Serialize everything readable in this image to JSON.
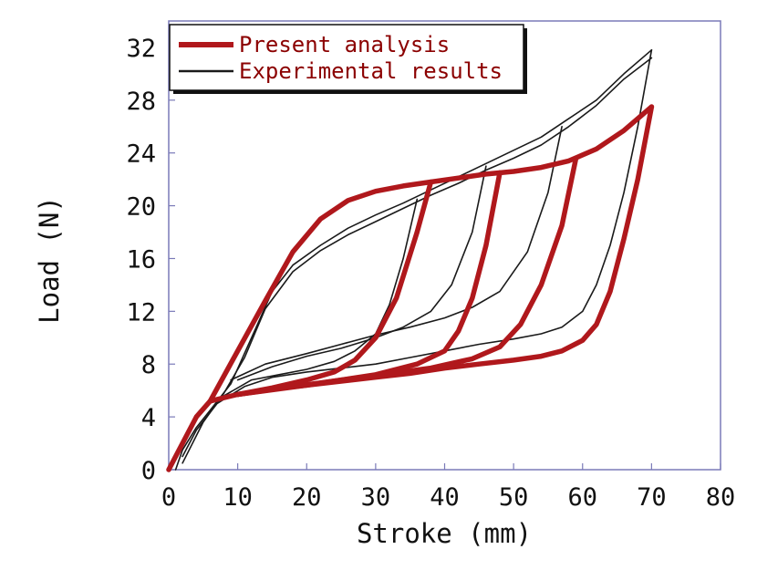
{
  "chart_data": {
    "type": "line",
    "title": "",
    "xlabel": "Stroke (mm)",
    "ylabel": "Load (N)",
    "xlim": [
      0,
      80
    ],
    "ylim": [
      0,
      34
    ],
    "xticks": [
      "0",
      "10",
      "20",
      "30",
      "40",
      "50",
      "60",
      "70",
      "80"
    ],
    "yticks": [
      "0",
      "4",
      "8",
      "12",
      "16",
      "20",
      "24",
      "28",
      "32"
    ],
    "grid": false,
    "legend_position": "top-left",
    "colors": {
      "analysis": "#b0181c",
      "experiment": "#1a1a1a"
    },
    "series": [
      {
        "name": "Present analysis",
        "style": "thick red",
        "segments": [
          [
            [
              0,
              0
            ],
            [
              2,
              2
            ],
            [
              4,
              4
            ],
            [
              6,
              5.2
            ],
            [
              10,
              9
            ],
            [
              14,
              12.8
            ],
            [
              18,
              16.5
            ],
            [
              22,
              19
            ],
            [
              26,
              20.4
            ],
            [
              30,
              21.1
            ],
            [
              34,
              21.5
            ],
            [
              38,
              21.8
            ],
            [
              42,
              22.1
            ],
            [
              46,
              22.4
            ],
            [
              50,
              22.6
            ],
            [
              54,
              22.9
            ],
            [
              58,
              23.4
            ],
            [
              62,
              24.3
            ],
            [
              66,
              25.7
            ],
            [
              70,
              27.5
            ]
          ],
          [
            [
              70,
              27.5
            ],
            [
              68,
              22
            ],
            [
              66,
              17.5
            ],
            [
              64,
              13.5
            ],
            [
              62,
              11
            ],
            [
              60,
              9.8
            ],
            [
              57,
              9
            ],
            [
              54,
              8.6
            ],
            [
              50,
              8.3
            ],
            [
              45,
              8
            ],
            [
              40,
              7.7
            ],
            [
              35,
              7.3
            ],
            [
              30,
              7
            ],
            [
              25,
              6.7
            ],
            [
              20,
              6.4
            ],
            [
              15,
              6.1
            ],
            [
              10,
              5.7
            ],
            [
              6,
              5.2
            ]
          ],
          [
            [
              38,
              21.8
            ],
            [
              36,
              18
            ],
            [
              33,
              13
            ],
            [
              30,
              10
            ],
            [
              27,
              8.3
            ],
            [
              24,
              7.4
            ],
            [
              20,
              6.8
            ],
            [
              15,
              6.2
            ],
            [
              10,
              5.7
            ]
          ],
          [
            [
              48,
              22.5
            ],
            [
              46,
              17
            ],
            [
              44,
              13
            ],
            [
              42,
              10.5
            ],
            [
              40,
              9
            ],
            [
              36,
              8
            ],
            [
              30,
              7.2
            ],
            [
              20,
              6.4
            ],
            [
              10,
              5.7
            ]
          ],
          [
            [
              59,
              23.5
            ],
            [
              57,
              18.5
            ],
            [
              54,
              14
            ],
            [
              51,
              11
            ],
            [
              48,
              9.3
            ],
            [
              44,
              8.4
            ],
            [
              38,
              7.7
            ],
            [
              28,
              7
            ],
            [
              18,
              6.3
            ],
            [
              10,
              5.7
            ]
          ]
        ]
      },
      {
        "name": "Experimental results",
        "style": "thin black",
        "segments": [
          [
            [
              1,
              0
            ],
            [
              2,
              1.5
            ],
            [
              4,
              3.2
            ],
            [
              6,
              4.5
            ],
            [
              9,
              6.5
            ],
            [
              12,
              10
            ],
            [
              15,
              13.5
            ],
            [
              18,
              15.5
            ],
            [
              22,
              17
            ],
            [
              26,
              18.3
            ],
            [
              30,
              19.3
            ],
            [
              34,
              20.2
            ],
            [
              38,
              21.2
            ],
            [
              42,
              22.2
            ],
            [
              46,
              23.2
            ],
            [
              50,
              24.2
            ],
            [
              54,
              25.2
            ],
            [
              58,
              26.6
            ],
            [
              62,
              28
            ],
            [
              66,
              30
            ],
            [
              70,
              31.8
            ]
          ],
          [
            [
              70,
              31.8
            ],
            [
              68,
              26
            ],
            [
              66,
              21
            ],
            [
              64,
              17
            ],
            [
              62,
              14
            ],
            [
              60,
              12
            ],
            [
              57,
              10.8
            ],
            [
              54,
              10.3
            ],
            [
              50,
              9.9
            ],
            [
              45,
              9.5
            ],
            [
              40,
              9
            ],
            [
              35,
              8.5
            ],
            [
              30,
              8
            ],
            [
              25,
              7.7
            ],
            [
              20,
              7.4
            ],
            [
              15,
              7
            ],
            [
              11,
              6.3
            ],
            [
              7,
              5
            ],
            [
              4,
              3
            ],
            [
              2,
              1
            ]
          ],
          [
            [
              36,
              20.5
            ],
            [
              34,
              16
            ],
            [
              32,
              12.5
            ],
            [
              30,
              10.3
            ],
            [
              27,
              9
            ],
            [
              24,
              8.2
            ],
            [
              20,
              7.6
            ],
            [
              16,
              7.2
            ],
            [
              12,
              6.8
            ],
            [
              8,
              5.6
            ]
          ],
          [
            [
              46,
              23
            ],
            [
              44,
              18
            ],
            [
              41,
              14
            ],
            [
              38,
              12
            ],
            [
              34,
              10.8
            ],
            [
              30,
              10
            ],
            [
              25,
              9.2
            ],
            [
              20,
              8.6
            ],
            [
              15,
              7.8
            ],
            [
              10,
              6.8
            ]
          ],
          [
            [
              57,
              26
            ],
            [
              55,
              21
            ],
            [
              52,
              16.5
            ],
            [
              48,
              13.5
            ],
            [
              44,
              12.3
            ],
            [
              40,
              11.5
            ],
            [
              35,
              10.8
            ],
            [
              30,
              10.2
            ],
            [
              25,
              9.5
            ],
            [
              20,
              8.8
            ],
            [
              14,
              8
            ],
            [
              9,
              6.8
            ]
          ],
          [
            [
              2,
              0.5
            ],
            [
              5,
              3.6
            ],
            [
              8,
              5.8
            ],
            [
              11,
              8.5
            ],
            [
              14,
              12.2
            ],
            [
              18,
              15
            ],
            [
              22,
              16.6
            ],
            [
              26,
              17.8
            ],
            [
              30,
              18.8
            ],
            [
              34,
              19.8
            ],
            [
              38,
              20.8
            ],
            [
              42,
              21.7
            ],
            [
              46,
              22.7
            ],
            [
              50,
              23.6
            ],
            [
              54,
              24.6
            ],
            [
              58,
              26
            ],
            [
              62,
              27.6
            ],
            [
              66,
              29.6
            ],
            [
              70,
              31.2
            ]
          ]
        ]
      }
    ]
  }
}
